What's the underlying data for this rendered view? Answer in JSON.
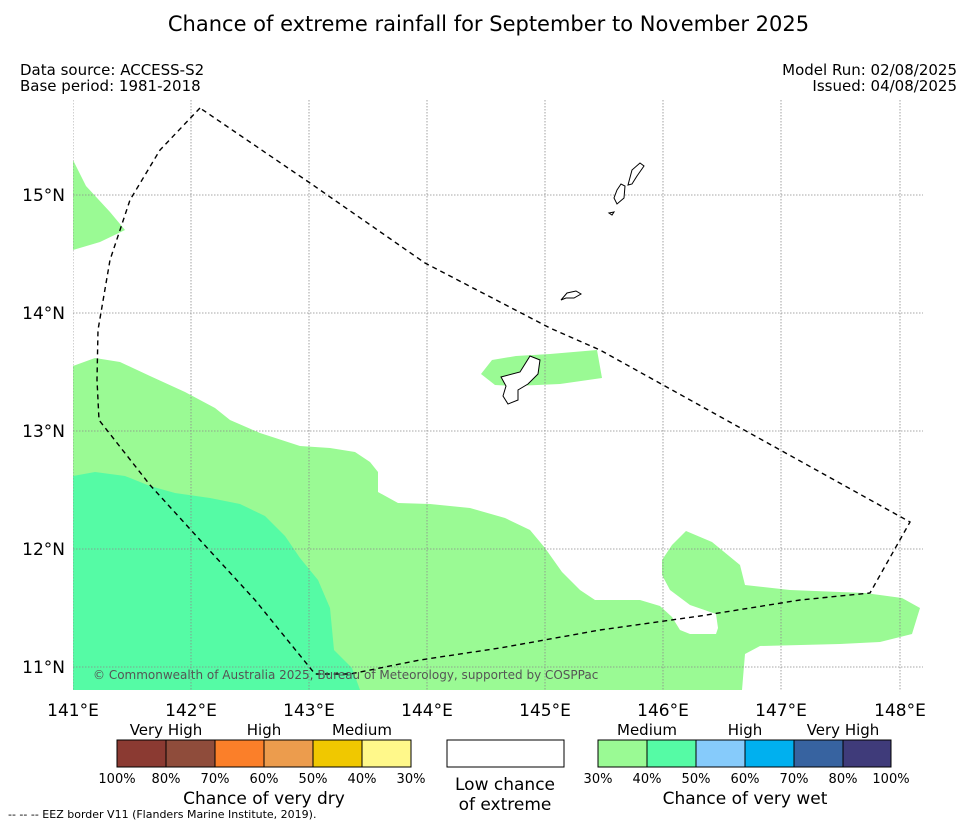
{
  "title": "Chance of extreme rainfall for September to November 2025",
  "meta": {
    "data_source": "Data source: ACCESS-S2",
    "base_period": "Base period: 1981-2018",
    "model_run": "Model Run: 02/08/2025",
    "issued": "Issued: 04/08/2025"
  },
  "map": {
    "lon_ticks": [
      "141°E",
      "142°E",
      "143°E",
      "144°E",
      "145°E",
      "146°E",
      "147°E",
      "148°E"
    ],
    "lat_ticks": [
      "15°N",
      "14°N",
      "13°N",
      "12°N",
      "11°N"
    ],
    "copyright": "© Commonwealth of Australia 2025, Bureau of Meteorology, supported by COSPPac",
    "colors": {
      "medium_wet": "#9afa94",
      "high_wet": "#55fba5"
    }
  },
  "legend": {
    "dry": {
      "categories": [
        "Very High",
        "High",
        "Medium"
      ],
      "ticks": [
        "100%",
        "80%",
        "70%",
        "60%",
        "50%",
        "40%",
        "30%"
      ],
      "colors": [
        "#8b3a32",
        "#8f4c3b",
        "#fb7f29",
        "#ec9c4d",
        "#f0c800",
        "#fff88a"
      ],
      "title": "Chance of very dry"
    },
    "neutral": {
      "line1": "Low chance",
      "line2": "of extreme",
      "color": "#ffffff"
    },
    "wet": {
      "categories": [
        "Medium",
        "High",
        "Very High"
      ],
      "ticks": [
        "30%",
        "40%",
        "50%",
        "60%",
        "70%",
        "80%",
        "100%"
      ],
      "colors": [
        "#9afa94",
        "#55fba5",
        "#86cbfb",
        "#00b0ef",
        "#3763a0",
        "#3f3b7a"
      ],
      "title": "Chance of very wet"
    }
  },
  "footer": "--  --  -- EEZ border V11 (Flanders Marine Institute, 2019)."
}
